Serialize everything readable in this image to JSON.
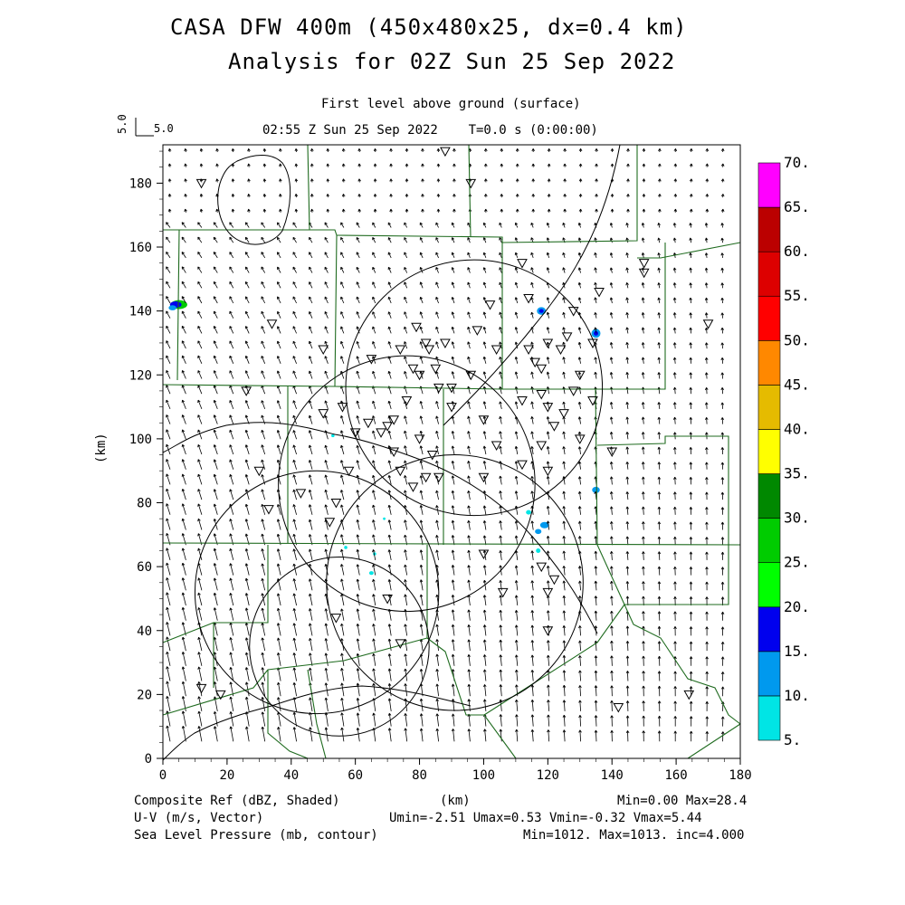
{
  "title": {
    "line1": "CASA DFW 400m (450x480x25, dx=0.4 km)",
    "line2": "Analysis for 02Z Sun 25 Sep 2022"
  },
  "subtitle": {
    "level": "First level above ground (surface)",
    "time": "02:55 Z Sun 25 Sep 2022    T=0.0 s (0:00:00)"
  },
  "reference_vector": {
    "x_label": "5.0",
    "y_label": "5.0"
  },
  "axes": {
    "xlabel": "(km)",
    "ylabel": "(km)",
    "xlim": [
      0,
      180
    ],
    "ylim": [
      0,
      192
    ],
    "x_ticks": [
      "0",
      "20",
      "40",
      "60",
      "80",
      "100",
      "120",
      "140",
      "160",
      "180"
    ],
    "y_ticks": [
      "0",
      "20",
      "40",
      "60",
      "80",
      "100",
      "120",
      "140",
      "160",
      "180"
    ]
  },
  "colorbar": {
    "labels": [
      "5.",
      "10.",
      "15.",
      "20.",
      "25.",
      "30.",
      "35.",
      "40.",
      "45.",
      "50.",
      "55.",
      "60.",
      "65.",
      "70."
    ],
    "colors": [
      "#00e5e5",
      "#0099ee",
      "#0000ee",
      "#00ff00",
      "#00cc00",
      "#008800",
      "#ffff00",
      "#e5bb00",
      "#ff8800",
      "#ff0000",
      "#dd0000",
      "#bb0000",
      "#ff00ff"
    ]
  },
  "footer": {
    "line1_left": "Composite Ref (dBZ, Shaded)",
    "line1_mid": "(km)",
    "line1_right": "Min=0.00 Max=28.4",
    "line2_left": "U-V (m/s, Vector)",
    "line2_right": "Umin=-2.51 Umax=0.53 Vmin=-0.32 Vmax=5.44",
    "line3_left": "Sea Level Pressure (mb, contour)",
    "line3_right": "Min=1012. Max=1013. inc=4.000"
  },
  "colors": {
    "county_lines": "#1f6b1f",
    "contour": "#000000",
    "station": "#000000",
    "vectors": "#000000"
  },
  "stations_km": [
    [
      12,
      180
    ],
    [
      50,
      128
    ],
    [
      34,
      136
    ],
    [
      26,
      115
    ],
    [
      33,
      78
    ],
    [
      30,
      90
    ],
    [
      43,
      83
    ],
    [
      50,
      108
    ],
    [
      56,
      110
    ],
    [
      60,
      102
    ],
    [
      64,
      105
    ],
    [
      65,
      125
    ],
    [
      68,
      102
    ],
    [
      70,
      104
    ],
    [
      72,
      106
    ],
    [
      74,
      128
    ],
    [
      76,
      112
    ],
    [
      78,
      122
    ],
    [
      80,
      120
    ],
    [
      79,
      135
    ],
    [
      82,
      130
    ],
    [
      83,
      128
    ],
    [
      85,
      122
    ],
    [
      86,
      116
    ],
    [
      88,
      130
    ],
    [
      90,
      110
    ],
    [
      84,
      95
    ],
    [
      80,
      100
    ],
    [
      72,
      96
    ],
    [
      74,
      90
    ],
    [
      82,
      88
    ],
    [
      78,
      85
    ],
    [
      86,
      88
    ],
    [
      90,
      116
    ],
    [
      96,
      120
    ],
    [
      100,
      106
    ],
    [
      100,
      88
    ],
    [
      104,
      98
    ],
    [
      112,
      112
    ],
    [
      118,
      114
    ],
    [
      120,
      110
    ],
    [
      125,
      108
    ],
    [
      130,
      100
    ],
    [
      128,
      115
    ],
    [
      122,
      104
    ],
    [
      130,
      120
    ],
    [
      134,
      130
    ],
    [
      128,
      140
    ],
    [
      120,
      130
    ],
    [
      124,
      128
    ],
    [
      126,
      132
    ],
    [
      116,
      124
    ],
    [
      114,
      128
    ],
    [
      118,
      122
    ],
    [
      114,
      144
    ],
    [
      112,
      155
    ],
    [
      102,
      142
    ],
    [
      98,
      134
    ],
    [
      104,
      128
    ],
    [
      112,
      92
    ],
    [
      120,
      90
    ],
    [
      118,
      98
    ],
    [
      140,
      96
    ],
    [
      134,
      112
    ],
    [
      136,
      146
    ],
    [
      170,
      136
    ],
    [
      150,
      155
    ],
    [
      118,
      60
    ],
    [
      122,
      56
    ],
    [
      120,
      52
    ],
    [
      106,
      52
    ],
    [
      100,
      64
    ],
    [
      70,
      50
    ],
    [
      54,
      44
    ],
    [
      74,
      36
    ],
    [
      58,
      90
    ],
    [
      54,
      80
    ],
    [
      52,
      74
    ],
    [
      12,
      22
    ],
    [
      18,
      20
    ],
    [
      142,
      16
    ],
    [
      164,
      20
    ],
    [
      150,
      152
    ],
    [
      88,
      190
    ],
    [
      96,
      180
    ],
    [
      120,
      40
    ]
  ],
  "reflectivity_cells_km": [
    [
      5,
      142,
      2.6,
      1.4,
      "#00cc00"
    ],
    [
      4,
      142,
      1.8,
      1.0,
      "#0000ee"
    ],
    [
      3,
      141,
      1.2,
      0.8,
      "#0099ee"
    ],
    [
      118,
      140,
      1.4,
      1.2,
      "#0099ee"
    ],
    [
      118,
      140,
      0.7,
      0.6,
      "#0000ee"
    ],
    [
      135,
      133,
      1.4,
      1.4,
      "#0099ee"
    ],
    [
      135,
      133,
      0.7,
      0.7,
      "#0000ee"
    ],
    [
      135,
      84,
      1.2,
      1.0,
      "#0099ee"
    ],
    [
      119,
      73,
      1.4,
      1.0,
      "#0099ee"
    ],
    [
      117,
      71,
      1.0,
      0.8,
      "#0099ee"
    ],
    [
      114,
      77,
      0.8,
      0.7,
      "#00e5e5"
    ],
    [
      117,
      65,
      0.7,
      0.7,
      "#00e5e5"
    ],
    [
      65,
      58,
      0.7,
      0.6,
      "#00e5e5"
    ],
    [
      66,
      64,
      0.5,
      0.5,
      "#00e5e5"
    ],
    [
      57,
      66,
      0.5,
      0.5,
      "#00e5e5"
    ],
    [
      53,
      101,
      0.5,
      0.5,
      "#00e5e5"
    ],
    [
      69,
      75,
      0.4,
      0.4,
      "#00e5e5"
    ]
  ],
  "range_rings_km": [
    [
      97,
      116,
      40
    ],
    [
      55,
      35,
      28
    ],
    [
      76,
      86,
      40
    ],
    [
      91,
      55,
      40
    ],
    [
      48,
      52,
      38
    ]
  ]
}
